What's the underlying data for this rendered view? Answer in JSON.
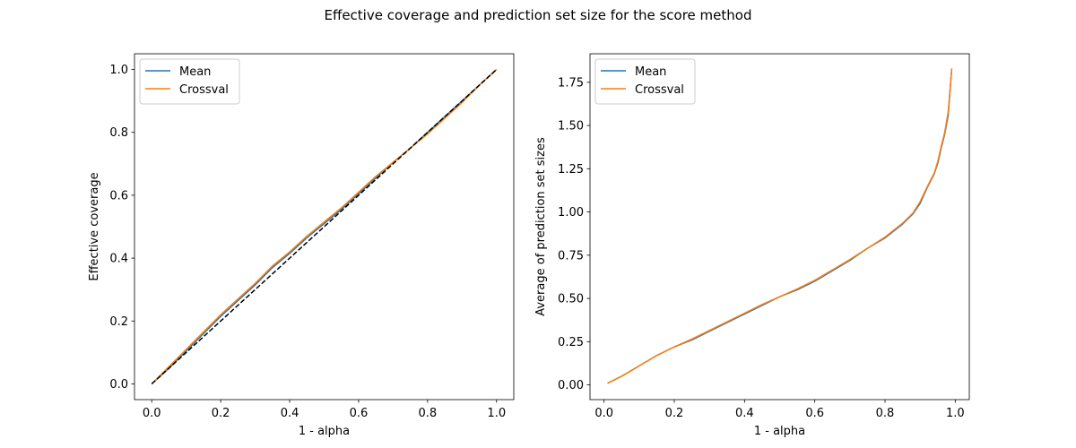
{
  "figure": {
    "title": "Effective coverage and prediction set size for the score method"
  },
  "colors": {
    "mean": "#1f77b4",
    "crossval": "#ff7f0e",
    "reference": "#000000",
    "axes": "#000000"
  },
  "chart_data": [
    {
      "type": "line",
      "title": "",
      "xlabel": "1 - alpha",
      "ylabel": "Effective coverage",
      "xlim": [
        -0.05,
        1.05
      ],
      "ylim": [
        -0.05,
        1.05
      ],
      "xticks": [
        0.0,
        0.2,
        0.4,
        0.6,
        0.8,
        1.0
      ],
      "xtick_labels": [
        "0.0",
        "0.2",
        "0.4",
        "0.6",
        "0.8",
        "1.0"
      ],
      "yticks": [
        0.0,
        0.2,
        0.4,
        0.6,
        0.8,
        1.0
      ],
      "ytick_labels": [
        "0.0",
        "0.2",
        "0.4",
        "0.6",
        "0.8",
        "1.0"
      ],
      "legend_position": "top-left",
      "grid": false,
      "series": [
        {
          "name": "Mean",
          "x": [
            0.0,
            0.05,
            0.1,
            0.15,
            0.2,
            0.25,
            0.3,
            0.35,
            0.4,
            0.45,
            0.5,
            0.55,
            0.6,
            0.65,
            0.7,
            0.75,
            0.8,
            0.85,
            0.9,
            0.95,
            1.0
          ],
          "y": [
            0.0,
            0.05,
            0.105,
            0.16,
            0.215,
            0.265,
            0.315,
            0.37,
            0.415,
            0.465,
            0.51,
            0.555,
            0.605,
            0.655,
            0.705,
            0.75,
            0.8,
            0.85,
            0.9,
            0.95,
            1.0
          ]
        },
        {
          "name": "Crossval",
          "x": [
            0.0,
            0.05,
            0.1,
            0.15,
            0.2,
            0.25,
            0.3,
            0.35,
            0.4,
            0.45,
            0.5,
            0.55,
            0.6,
            0.65,
            0.7,
            0.75,
            0.8,
            0.85,
            0.9,
            0.95,
            1.0
          ],
          "y": [
            0.0,
            0.055,
            0.11,
            0.165,
            0.22,
            0.27,
            0.32,
            0.375,
            0.42,
            0.47,
            0.515,
            0.56,
            0.61,
            0.66,
            0.705,
            0.75,
            0.795,
            0.845,
            0.895,
            0.95,
            1.0
          ]
        },
        {
          "name": "",
          "style": "dashed",
          "x": [
            0.0,
            1.0
          ],
          "y": [
            0.0,
            1.0
          ]
        }
      ]
    },
    {
      "type": "line",
      "title": "",
      "xlabel": "1 - alpha",
      "ylabel": "Average of prediction set sizes",
      "xlim": [
        -0.04,
        1.04
      ],
      "ylim": [
        -0.085,
        1.915
      ],
      "xticks": [
        0.0,
        0.2,
        0.4,
        0.6,
        0.8,
        1.0
      ],
      "xtick_labels": [
        "0.0",
        "0.2",
        "0.4",
        "0.6",
        "0.8",
        "1.0"
      ],
      "yticks": [
        0.0,
        0.25,
        0.5,
        0.75,
        1.0,
        1.25,
        1.5,
        1.75
      ],
      "ytick_labels": [
        "0.00",
        "0.25",
        "0.50",
        "0.75",
        "1.00",
        "1.25",
        "1.50",
        "1.75"
      ],
      "legend_position": "top-left",
      "grid": false,
      "series": [
        {
          "name": "Mean",
          "x": [
            0.01,
            0.05,
            0.1,
            0.15,
            0.2,
            0.25,
            0.3,
            0.35,
            0.4,
            0.45,
            0.5,
            0.55,
            0.6,
            0.65,
            0.7,
            0.75,
            0.8,
            0.85,
            0.88,
            0.9,
            0.92,
            0.94,
            0.95,
            0.96,
            0.97,
            0.98,
            0.99
          ],
          "y": [
            0.01,
            0.05,
            0.11,
            0.17,
            0.22,
            0.26,
            0.31,
            0.36,
            0.41,
            0.46,
            0.51,
            0.55,
            0.6,
            0.66,
            0.72,
            0.79,
            0.85,
            0.93,
            0.99,
            1.05,
            1.14,
            1.22,
            1.28,
            1.37,
            1.45,
            1.56,
            1.83
          ]
        },
        {
          "name": "Crossval",
          "x": [
            0.01,
            0.05,
            0.1,
            0.15,
            0.2,
            0.25,
            0.3,
            0.35,
            0.4,
            0.45,
            0.5,
            0.55,
            0.6,
            0.65,
            0.7,
            0.75,
            0.8,
            0.85,
            0.88,
            0.9,
            0.92,
            0.94,
            0.95,
            0.96,
            0.97,
            0.98,
            0.99
          ],
          "y": [
            0.01,
            0.05,
            0.11,
            0.17,
            0.22,
            0.265,
            0.315,
            0.365,
            0.415,
            0.465,
            0.51,
            0.555,
            0.605,
            0.665,
            0.725,
            0.79,
            0.855,
            0.935,
            0.995,
            1.06,
            1.145,
            1.225,
            1.29,
            1.38,
            1.46,
            1.58,
            1.83
          ]
        }
      ]
    }
  ]
}
